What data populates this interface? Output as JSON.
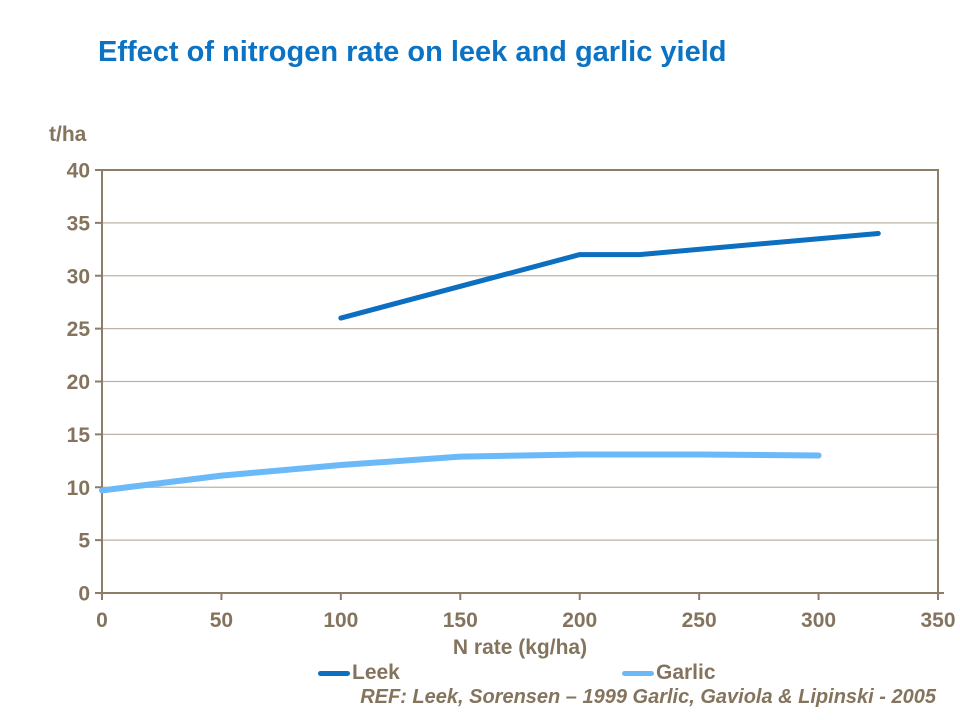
{
  "title": "Effect of nitrogen rate on leek and garlic yield",
  "colors": {
    "title": "#0B72C4",
    "leek": "#0C6FBF",
    "garlic": "#6CB9F8",
    "axis_text": "#84745E",
    "axis_line": "#8B7D68",
    "gridline": "#BCB2A3",
    "background": "#FFFFFF"
  },
  "chart_data": {
    "type": "line",
    "title": "Effect of nitrogen rate on leek and garlic yield",
    "xlabel": "N rate (kg/ha)",
    "ylabel": "t/ha",
    "xlim": [
      0,
      350
    ],
    "ylim": [
      0,
      40
    ],
    "x_ticks": [
      0,
      50,
      100,
      150,
      200,
      250,
      300,
      350
    ],
    "y_ticks": [
      0,
      5,
      10,
      15,
      20,
      25,
      30,
      35,
      40
    ],
    "grid": "horizontal",
    "legend_position": "bottom",
    "series": [
      {
        "name": "Leek",
        "color": "#0C6FBF",
        "points": [
          [
            100,
            26
          ],
          [
            200,
            32
          ],
          [
            225,
            32
          ],
          [
            325,
            34
          ]
        ]
      },
      {
        "name": "Garlic",
        "color": "#6CB9F8",
        "points": [
          [
            0,
            9.7
          ],
          [
            50,
            11.1
          ],
          [
            100,
            12.1
          ],
          [
            150,
            12.9
          ],
          [
            200,
            13.1
          ],
          [
            250,
            13.1
          ],
          [
            300,
            13
          ]
        ]
      }
    ],
    "footnote": "REF: Leek, Sorensen – 1999 Garlic, Gaviola & Lipinski - 2005"
  },
  "legend": {
    "items": [
      {
        "label": "Leek",
        "color": "#0C6FBF"
      },
      {
        "label": "Garlic",
        "color": "#6CB9F8"
      }
    ]
  },
  "footnote": "REF: Leek, Sorensen – 1999 Garlic, Gaviola & Lipinski - 2005"
}
